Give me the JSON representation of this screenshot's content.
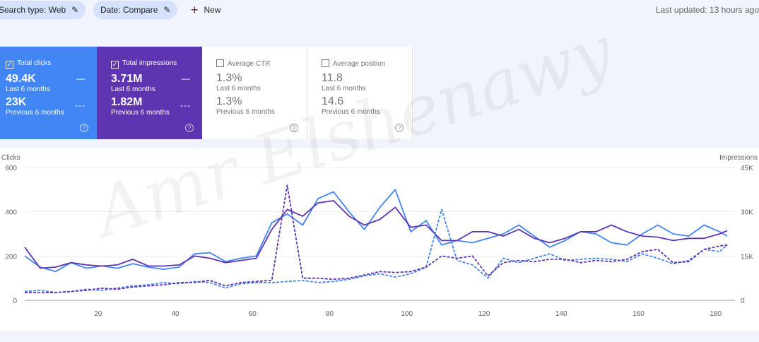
{
  "topbar": {
    "chips": [
      "Search type: Web",
      "Date: Compare"
    ],
    "new_label": "New",
    "last_updated": "Last updated: 13 hours ago"
  },
  "cards": [
    {
      "title": "Total clicks",
      "checked": true,
      "value": "49.4K",
      "period": "Last 6 months",
      "prev_value": "23K",
      "prev_period": "Previous 6 months",
      "color": "#4285f4"
    },
    {
      "title": "Total impressions",
      "checked": true,
      "value": "3.71M",
      "period": "Last 6 months",
      "prev_value": "1.82M",
      "prev_period": "Previous 6 months",
      "color": "#5e35b1"
    },
    {
      "title": "Average CTR",
      "checked": false,
      "value": "1.3%",
      "period": "Last 6 months",
      "prev_value": "1.3%",
      "prev_period": "Previous 6 months"
    },
    {
      "title": "Average position",
      "checked": false,
      "value": "11.8",
      "period": "Last 6 months",
      "prev_value": "14.6",
      "prev_period": "Previous 6 months"
    }
  ],
  "watermark": "Amr Elshenawy",
  "chart_data": {
    "type": "line",
    "ylabel": "Clicks",
    "y2label": "Impressions",
    "ylim": [
      0,
      600
    ],
    "y2lim": [
      0,
      45000
    ],
    "yticks": [
      "0",
      "200",
      "400",
      "600"
    ],
    "y2ticks": [
      "0",
      "15K",
      "30K",
      "45K"
    ],
    "xlim": [
      1,
      185
    ],
    "xticks": [
      20,
      40,
      60,
      80,
      100,
      120,
      140,
      160,
      180
    ],
    "grid": true,
    "x": [
      1,
      5,
      9,
      13,
      17,
      21,
      25,
      29,
      33,
      37,
      41,
      45,
      49,
      53,
      57,
      61,
      65,
      69,
      73,
      77,
      81,
      85,
      89,
      93,
      97,
      101,
      105,
      109,
      113,
      117,
      121,
      125,
      129,
      133,
      137,
      141,
      145,
      149,
      153,
      157,
      161,
      165,
      169,
      173,
      177,
      181,
      183
    ],
    "series": [
      {
        "name": "Clicks",
        "axis": "left",
        "style": "solid",
        "color": "#4285f4",
        "values": [
          200,
          150,
          130,
          170,
          145,
          155,
          145,
          165,
          150,
          140,
          150,
          210,
          215,
          175,
          190,
          200,
          350,
          390,
          340,
          460,
          490,
          400,
          320,
          420,
          500,
          310,
          360,
          250,
          270,
          260,
          280,
          300,
          340,
          290,
          240,
          270,
          310,
          300,
          260,
          250,
          300,
          340,
          300,
          290,
          340,
          310,
          290
        ]
      },
      {
        "name": "Impressions",
        "axis": "right",
        "style": "solid",
        "color": "#5e35b1",
        "values": [
          18000,
          10900,
          11250,
          12750,
          12000,
          11600,
          12000,
          13900,
          11600,
          11600,
          12000,
          15000,
          14250,
          12750,
          13500,
          14250,
          24000,
          30750,
          28500,
          33000,
          33750,
          28500,
          25500,
          27400,
          31500,
          24750,
          25500,
          20250,
          20250,
          23250,
          23250,
          21750,
          24000,
          21000,
          19500,
          21000,
          23250,
          23250,
          25500,
          23250,
          21750,
          21400,
          20250,
          21000,
          21000,
          22500,
          23600
        ]
      },
      {
        "name": "Clicks (previous)",
        "axis": "left",
        "style": "dashed",
        "color": "#4285f4",
        "values": [
          40,
          45,
          35,
          40,
          50,
          45,
          55,
          65,
          70,
          80,
          75,
          85,
          80,
          55,
          75,
          80,
          80,
          85,
          90,
          80,
          85,
          95,
          110,
          120,
          105,
          120,
          150,
          410,
          180,
          160,
          100,
          190,
          170,
          190,
          210,
          180,
          185,
          190,
          185,
          175,
          210,
          190,
          165,
          180,
          230,
          220,
          250
        ]
      },
      {
        "name": "Impressions (previous)",
        "axis": "right",
        "style": "dashed",
        "color": "#5e35b1",
        "values": [
          2600,
          2600,
          2600,
          3000,
          3400,
          4100,
          3750,
          4500,
          4900,
          5250,
          6000,
          6000,
          6750,
          4900,
          6000,
          6400,
          6750,
          39000,
          7500,
          7500,
          7100,
          7500,
          8600,
          9750,
          9400,
          9750,
          11250,
          15000,
          14250,
          15000,
          8250,
          12750,
          13500,
          13100,
          13900,
          13900,
          12750,
          13500,
          13100,
          13900,
          16500,
          17250,
          12750,
          13100,
          17250,
          18400,
          18750
        ]
      }
    ]
  }
}
